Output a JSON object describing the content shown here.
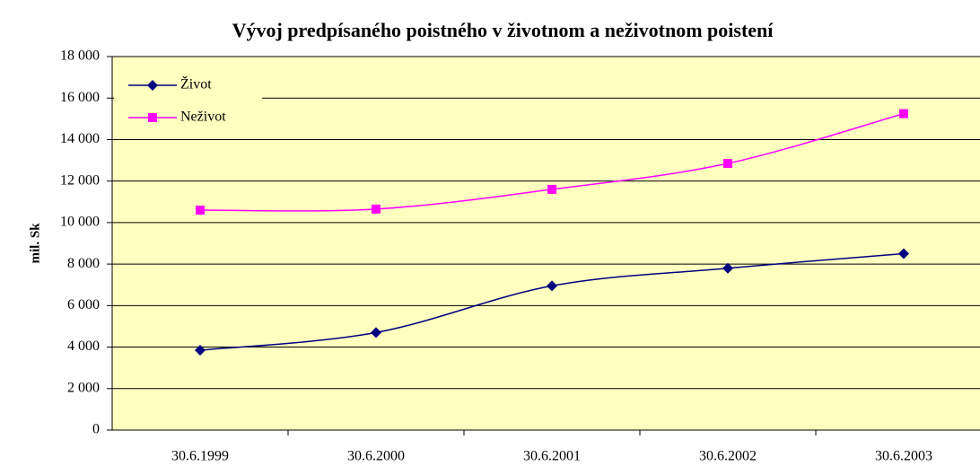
{
  "chart_data": {
    "type": "line",
    "title": "Vývoj predpísaného poistného v životnom a neživotnom poistení",
    "y_label": "mil. Sk",
    "categories": [
      "30.6.1999",
      "30.6.2000",
      "30.6.2001",
      "30.6.2002",
      "30.6.2003"
    ],
    "series": [
      {
        "name": "Život",
        "color": "#000080",
        "marker": "diamond",
        "values": [
          3850,
          4700,
          6950,
          7800,
          8500
        ]
      },
      {
        "name": "Neživot",
        "color": "#ff00ff",
        "marker": "square",
        "values": [
          10600,
          10650,
          11600,
          12850,
          15250
        ]
      }
    ],
    "ylim": [
      0,
      18000
    ],
    "yticks": [
      0,
      {
        "value": 2000,
        "label": "2 000"
      },
      {
        "value": 4000,
        "label": "4 000"
      },
      {
        "value": 6000,
        "label": "6 000"
      },
      {
        "value": 8000,
        "label": "8 000"
      },
      {
        "value": 10000,
        "label": "10 000"
      },
      {
        "value": 12000,
        "label": "12 000"
      },
      {
        "value": 14000,
        "label": "14 000"
      },
      {
        "value": 16000,
        "label": "16 000"
      },
      {
        "value": 18000,
        "label": "18 000"
      }
    ],
    "grid": true,
    "smooth": true,
    "legend": "top-left",
    "background": "#ffffc0"
  }
}
